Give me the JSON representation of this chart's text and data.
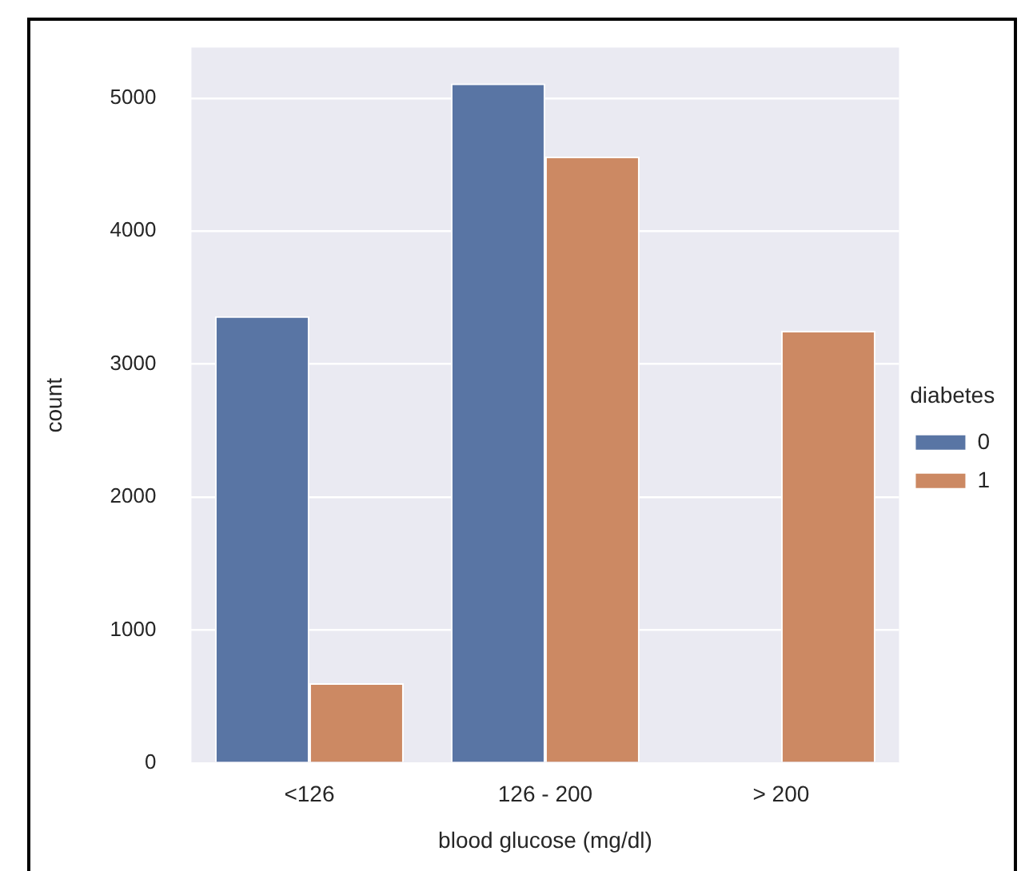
{
  "chart_data": {
    "type": "bar",
    "xlabel": "blood glucose (mg/dl)",
    "ylabel": "count",
    "legend_title": "diabetes",
    "categories": [
      "<126",
      "126 - 200",
      "> 200"
    ],
    "series": [
      {
        "name": "0",
        "color": "#5975a4",
        "values": [
          3360,
          5110,
          0
        ]
      },
      {
        "name": "1",
        "color": "#cc8963",
        "values": [
          600,
          4560,
          3250
        ]
      }
    ],
    "ylim": [
      0,
      5380
    ],
    "yticks": [
      0,
      1000,
      2000,
      3000,
      4000,
      5000
    ],
    "grid": "y",
    "legend": "right"
  }
}
